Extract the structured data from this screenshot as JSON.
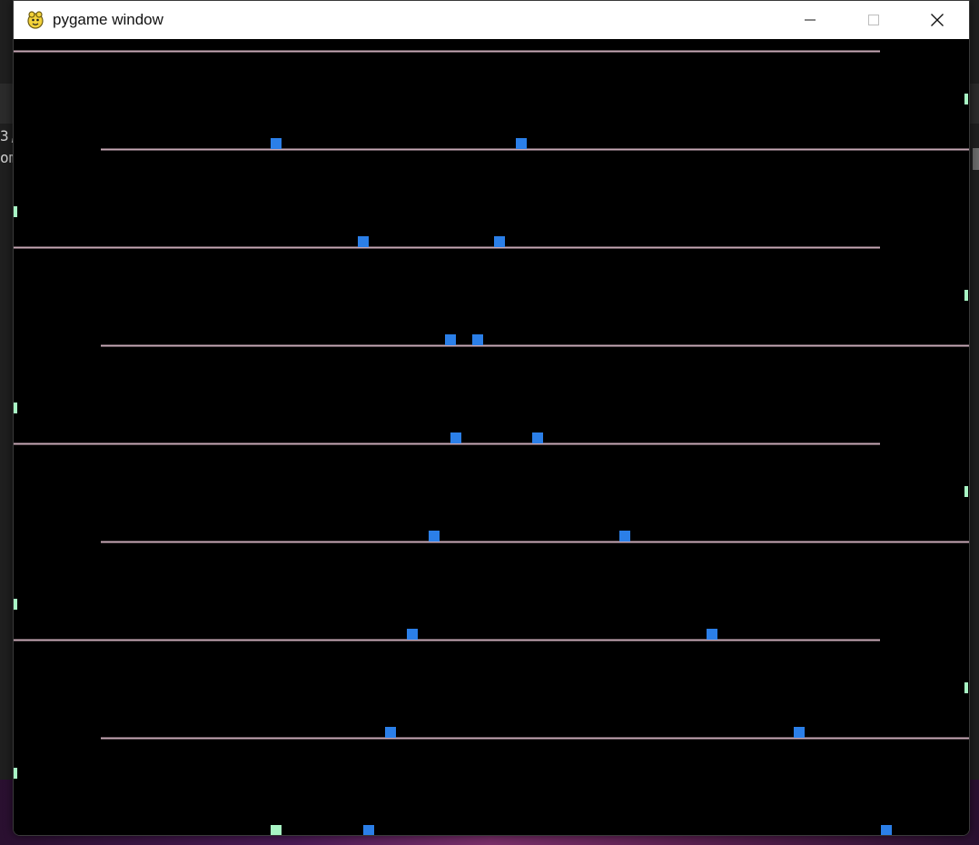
{
  "window": {
    "title": "pygame window",
    "icons": {
      "app": "pygame-snake-icon",
      "minimize": "minimize-icon",
      "maximize": "maximize-icon",
      "close": "close-icon"
    }
  },
  "background": {
    "editor_text": [
      "3,",
      "om"
    ]
  },
  "game": {
    "colors": {
      "background": "#000000",
      "line": "#c7a9b6",
      "block": "#2b7fe8",
      "marker": "#a8f5c4"
    }
  }
}
